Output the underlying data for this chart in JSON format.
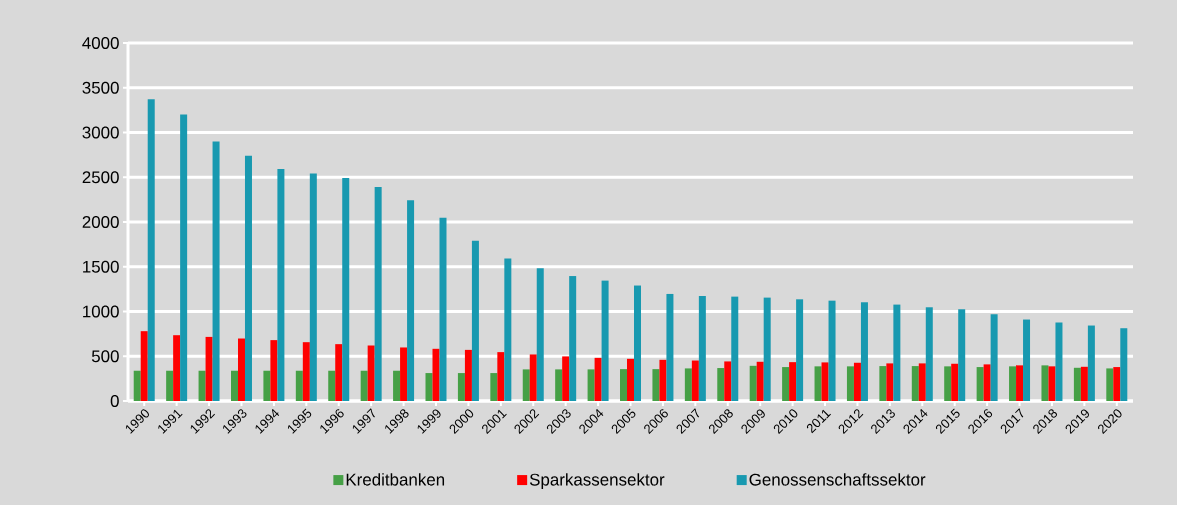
{
  "chart_data": {
    "type": "bar",
    "categories": [
      "1990",
      "1991",
      "1992",
      "1993",
      "1994",
      "1995",
      "1996",
      "1997",
      "1998",
      "1999",
      "2000",
      "2001",
      "2002",
      "2003",
      "2004",
      "2005",
      "2006",
      "2007",
      "2008",
      "2009",
      "2010",
      "2011",
      "2012",
      "2013",
      "2014",
      "2015",
      "2016",
      "2017",
      "2018",
      "2019",
      "2020"
    ],
    "series": [
      {
        "name": "Kreditbanken",
        "color": "#46a046",
        "values": [
          338,
          338,
          338,
          338,
          338,
          338,
          338,
          338,
          338,
          312,
          312,
          312,
          353,
          353,
          353,
          356,
          356,
          364,
          368,
          393,
          379,
          387,
          387,
          390,
          390,
          387,
          379,
          387,
          398,
          371,
          364
        ]
      },
      {
        "name": "Sparkassensektor",
        "color": "#ff0000",
        "values": [
          780,
          735,
          716,
          698,
          680,
          657,
          635,
          620,
          598,
          583,
          571,
          546,
          520,
          498,
          482,
          471,
          460,
          452,
          442,
          438,
          434,
          431,
          427,
          420,
          420,
          416,
          409,
          398,
          387,
          382,
          379
        ]
      },
      {
        "name": "Genossenschaftssektor",
        "color": "#1899b0",
        "values": [
          3370,
          3200,
          2900,
          2740,
          2592,
          2543,
          2492,
          2392,
          2243,
          2047,
          1790,
          1593,
          1482,
          1396,
          1345,
          1290,
          1196,
          1173,
          1166,
          1155,
          1136,
          1121,
          1103,
          1077,
          1047,
          1025,
          969,
          910,
          877,
          843,
          813
        ]
      }
    ],
    "ylim": [
      0,
      4000
    ],
    "yticks": [
      0,
      500,
      1000,
      1500,
      2000,
      2500,
      3000,
      3500,
      4000
    ],
    "grid": "y",
    "legend": "bottom"
  }
}
